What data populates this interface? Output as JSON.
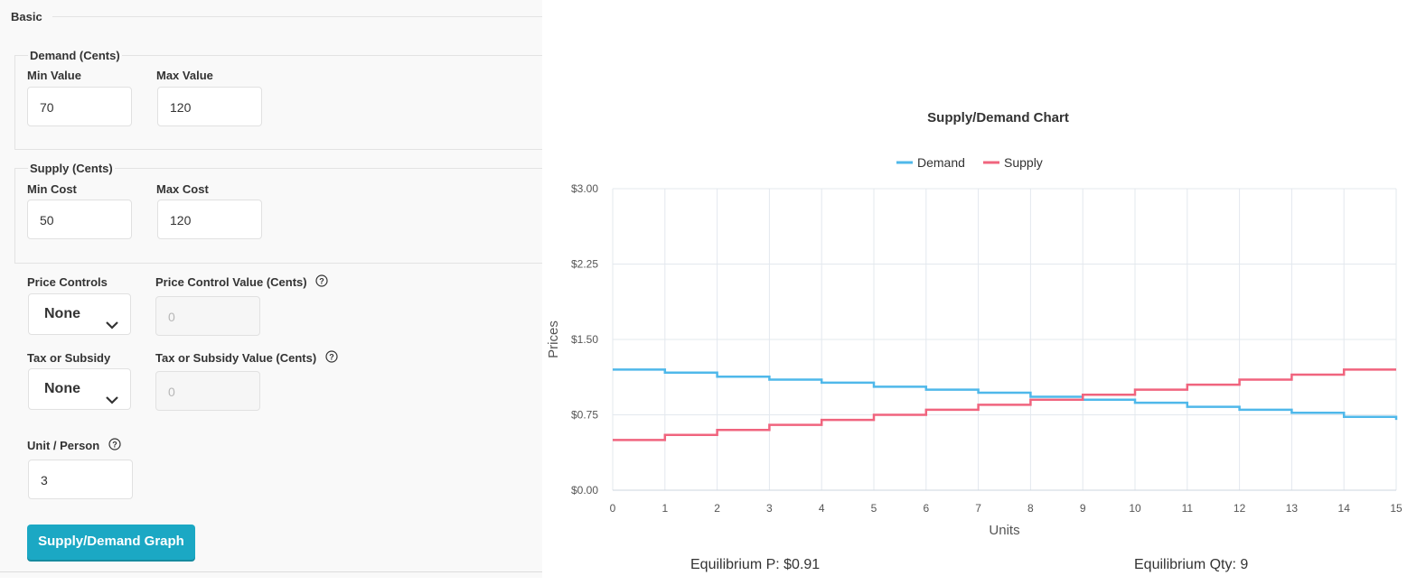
{
  "form": {
    "basic_label": "Basic",
    "demand": {
      "legend": "Demand (Cents)",
      "min_label": "Min Value",
      "min_value": "70",
      "max_label": "Max Value",
      "max_value": "120"
    },
    "supply": {
      "legend": "Supply (Cents)",
      "min_label": "Min Cost",
      "min_value": "50",
      "max_label": "Max Cost",
      "max_value": "120"
    },
    "price_controls": {
      "label": "Price Controls",
      "selected": "None",
      "value_label": "Price Control Value (Cents)",
      "value_placeholder": "0"
    },
    "tax": {
      "label": "Tax or Subsidy",
      "selected": "None",
      "value_label": "Tax or Subsidy Value (Cents)",
      "value_placeholder": "0"
    },
    "unit_person": {
      "label": "Unit / Person",
      "value": "3"
    },
    "graph_button": "Supply/Demand Graph"
  },
  "chart_data": {
    "type": "line",
    "title": "Supply/Demand Chart",
    "xlabel": "Units",
    "ylabel": "Prices",
    "x_ticks": [
      "0",
      "1",
      "2",
      "3",
      "4",
      "5",
      "6",
      "7",
      "8",
      "9",
      "10",
      "11",
      "12",
      "13",
      "14",
      "15"
    ],
    "y_ticks": [
      "$0.00",
      "$0.75",
      "$1.50",
      "$2.25",
      "$3.00"
    ],
    "ylim": [
      0,
      3
    ],
    "xlim": [
      0,
      15
    ],
    "grid": true,
    "legend_position": "top",
    "step": true,
    "series": [
      {
        "name": "Demand",
        "color": "#4fb8ea",
        "values": [
          1.2,
          1.17,
          1.13,
          1.1,
          1.07,
          1.03,
          1.0,
          0.97,
          0.93,
          0.9,
          0.87,
          0.83,
          0.8,
          0.77,
          0.73,
          0.7
        ]
      },
      {
        "name": "Supply",
        "color": "#f0647e",
        "values": [
          0.5,
          0.55,
          0.6,
          0.65,
          0.7,
          0.75,
          0.8,
          0.85,
          0.9,
          0.95,
          1.0,
          1.05,
          1.1,
          1.15,
          1.2,
          1.2
        ]
      }
    ]
  },
  "results": {
    "equilibrium_price": "Equilibrium P: $0.91",
    "equilibrium_qty": "Equilibrium Qty: 9"
  }
}
